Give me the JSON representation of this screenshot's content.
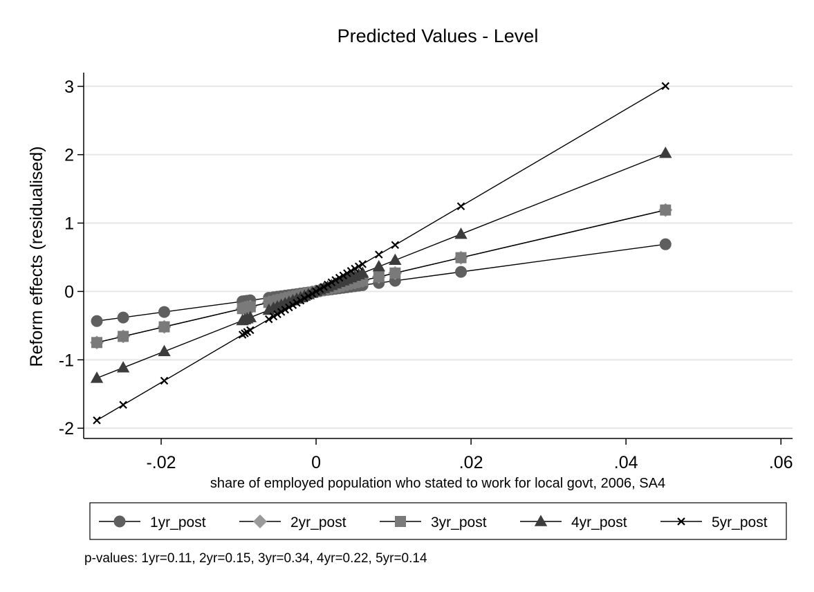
{
  "chart_data": {
    "type": "line",
    "title": "Predicted Values - Level",
    "xlabel": "share of employed population who stated to work for local govt, 2006, SA4",
    "ylabel": "Reform effects (residualised)",
    "xlim": [
      -0.03,
      0.0615
    ],
    "ylim": [
      -2.15,
      3.2
    ],
    "x_ticks": [
      -0.02,
      0,
      0.02,
      0.04,
      0.06
    ],
    "x_tick_labels": [
      "-.02",
      "0",
      ".02",
      ".04",
      ".06"
    ],
    "y_ticks": [
      -2,
      -1,
      0,
      1,
      2,
      3
    ],
    "y_tick_labels": [
      "-2",
      "-1",
      "0",
      "1",
      "2",
      "3"
    ],
    "grid": "horizontal",
    "legend_position": "bottom",
    "x": [
      -0.0283,
      -0.0249,
      -0.0196,
      -0.0095,
      -0.0092,
      -0.0089,
      -0.0085,
      -0.0061,
      -0.0055,
      -0.005,
      -0.0045,
      -0.004,
      -0.0035,
      -0.003,
      -0.0025,
      -0.002,
      -0.0015,
      -0.001,
      -0.0005,
      0.0,
      0.0005,
      0.001,
      0.0015,
      0.002,
      0.0025,
      0.003,
      0.0035,
      0.004,
      0.0045,
      0.005,
      0.0055,
      0.006,
      0.0081,
      0.0102,
      0.0187,
      0.0451
    ],
    "series": [
      {
        "name": "1yr_post",
        "marker": "circle",
        "color": "#5f5f5f",
        "slope": 15.3
      },
      {
        "name": "2yr_post",
        "marker": "diamond",
        "color": "#9a9a9a",
        "slope": 26.4
      },
      {
        "name": "3yr_post",
        "marker": "square",
        "color": "#7a7a7a",
        "slope": 26.4
      },
      {
        "name": "4yr_post",
        "marker": "triangle",
        "color": "#3c3c3c",
        "slope": 44.8
      },
      {
        "name": "5yr_post",
        "marker": "x",
        "color": "#000000",
        "slope": 66.6
      }
    ]
  },
  "note": "p-values: 1yr=0.11,  2yr=0.15,  3yr=0.34,  4yr=0.22,  5yr=0.14"
}
